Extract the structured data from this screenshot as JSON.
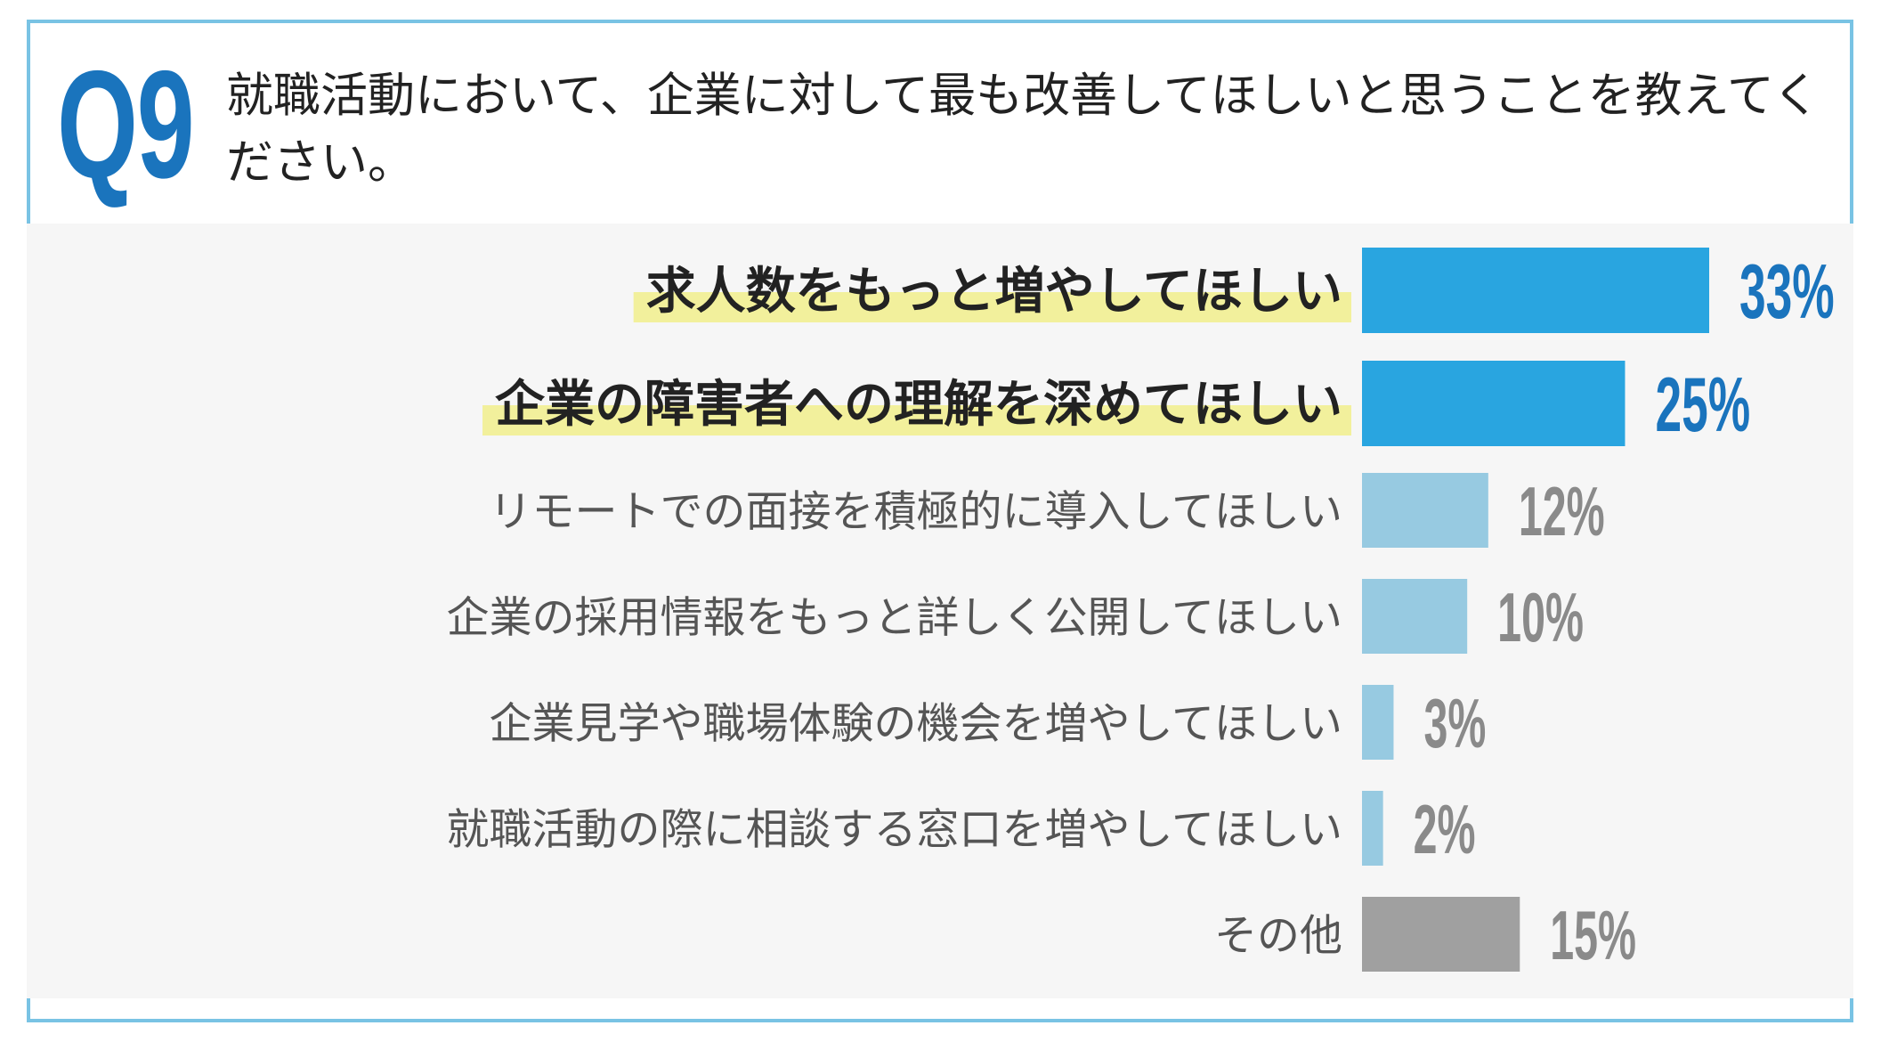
{
  "question": {
    "number": "Q9",
    "text": "就職活動において、企業に対して最も改善してほしいと思うことを教えてください。"
  },
  "chart_data": {
    "type": "bar",
    "orientation": "horizontal",
    "unit": "%",
    "categories": [
      "求人数をもっと増やしてほしい",
      "企業の障害者への理解を深めてほしい",
      "リモートでの面接を積極的に導入してほしい",
      "企業の採用情報をもっと詳しく公開してほしい",
      "企業見学や職場体験の機会を増やしてほしい",
      "就職活動の際に相談する窓口を増やしてほしい",
      "その他"
    ],
    "values": [
      33,
      25,
      12,
      10,
      3,
      2,
      15
    ],
    "value_labels": [
      "33%",
      "25%",
      "12%",
      "10%",
      "3%",
      "2%",
      "15%"
    ],
    "highlighted": [
      true,
      true,
      false,
      false,
      false,
      false,
      false
    ],
    "bar_colors": [
      "#29a5e0",
      "#29a5e0",
      "#97cae1",
      "#97cae1",
      "#97cae1",
      "#97cae1",
      "#a0a0a0"
    ],
    "label_colors": [
      "#1a74bd",
      "#1a74bd",
      "#8a8a8a",
      "#8a8a8a",
      "#8a8a8a",
      "#8a8a8a",
      "#8a8a8a"
    ],
    "highlight_color": "#f2f09c",
    "xlim": [
      0,
      33
    ]
  },
  "colors": {
    "frame_border": "#79c3e4",
    "question_number": "#1a74bd",
    "panel_background": "#f6f6f6"
  }
}
